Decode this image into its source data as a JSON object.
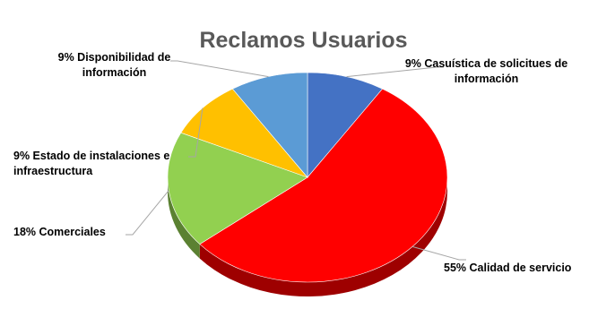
{
  "chart_data": {
    "type": "pie",
    "title": "Reclamos Usuarios",
    "slices": [
      {
        "label": "9% Casuística de solicitues de información",
        "value": 9,
        "color": "#4472C4"
      },
      {
        "label": "55% Calidad de servicio",
        "value": 55,
        "color": "#FF0000"
      },
      {
        "label": "18% Comerciales",
        "value": 18,
        "color": "#92D050"
      },
      {
        "label": "9% Estado de instalaciones e infraestructura",
        "value": 9,
        "color": "#FFC000"
      },
      {
        "label": "9% Disponibilidad de información",
        "value": 9,
        "color": "#5B9BD5"
      }
    ],
    "legend": "none",
    "style": "3d-pie"
  }
}
